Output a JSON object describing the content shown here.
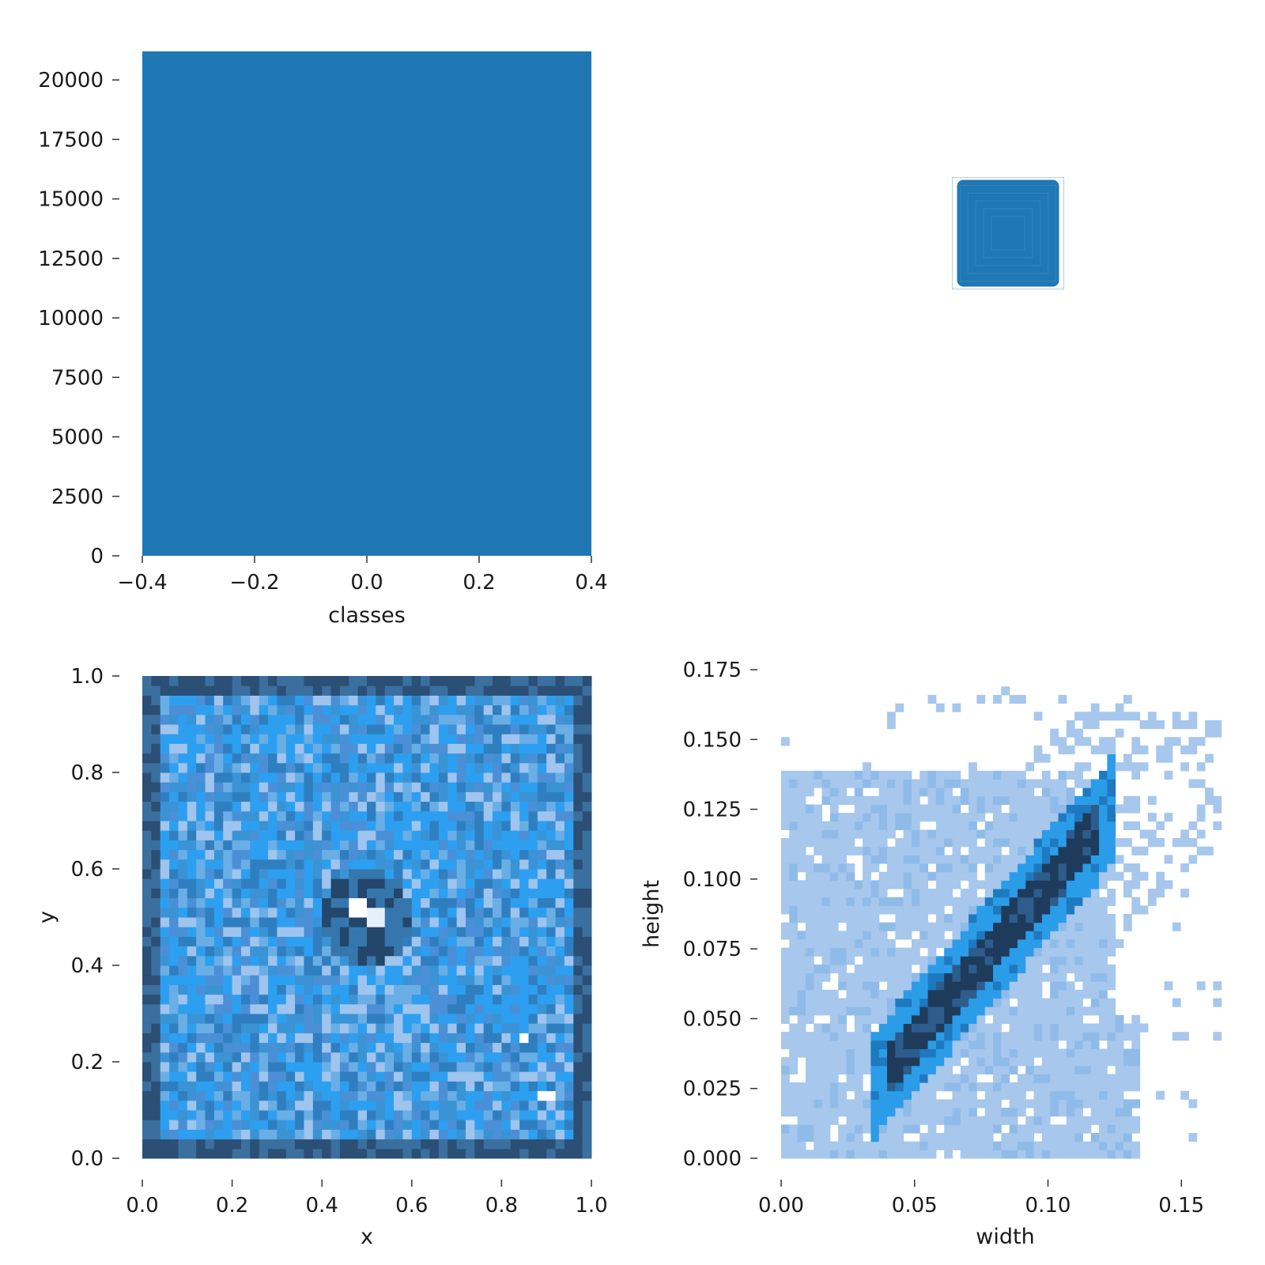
{
  "colors": {
    "bar": "#1f77b4",
    "heat_dark": "#1f3b5c",
    "heat_mid": "#2b9ce8",
    "heat_light": "#a7c7ec",
    "box": "#1f77b4"
  },
  "chart_data": [
    {
      "id": "classes-bar",
      "type": "bar",
      "categories": [
        0
      ],
      "values": [
        21200
      ],
      "bar_range": [
        -0.4,
        0.4
      ],
      "xlabel": "classes",
      "ylabel": "",
      "xlim": [
        -0.4,
        0.4
      ],
      "ylim": [
        0,
        21200
      ],
      "xticks": [
        -0.4,
        -0.2,
        0.0,
        0.2,
        0.4
      ],
      "xtick_labels": [
        "−0.4",
        "−0.2",
        "0.0",
        "0.2",
        "0.4"
      ],
      "yticks": [
        0,
        2500,
        5000,
        7500,
        10000,
        12500,
        15000,
        17500,
        20000
      ],
      "ytick_labels": [
        "0",
        "2500",
        "5000",
        "7500",
        "10000",
        "12500",
        "15000",
        "17500",
        "20000"
      ],
      "grid": false,
      "legend": "none"
    },
    {
      "id": "box-overlay",
      "type": "other",
      "description_kind": "overlaid normalized bounding boxes centered in a unit square",
      "center": [
        0.5,
        0.5
      ],
      "size": [
        0.15,
        0.15
      ],
      "xlim": [
        0,
        1
      ],
      "ylim": [
        0,
        1
      ],
      "axes": "off"
    },
    {
      "id": "xy-heatmap",
      "type": "heatmap",
      "x_bins": 50,
      "y_bins": 50,
      "xlabel": "x",
      "ylabel": "y",
      "xlim": [
        0.0,
        1.0
      ],
      "ylim": [
        0.0,
        1.0
      ],
      "xticks": [
        0.0,
        0.2,
        0.4,
        0.6,
        0.8,
        1.0
      ],
      "xtick_labels": [
        "0.0",
        "0.2",
        "0.4",
        "0.6",
        "0.8",
        "1.0"
      ],
      "yticks": [
        0.0,
        0.2,
        0.4,
        0.6,
        0.8,
        1.0
      ],
      "ytick_labels": [
        "0.0",
        "0.2",
        "0.4",
        "0.6",
        "0.8",
        "1.0"
      ],
      "hotspots": [
        {
          "x": 0.48,
          "y": 0.52,
          "value": 0.0
        },
        {
          "x": 0.52,
          "y": 0.5,
          "value": 0.05
        },
        {
          "x": 0.85,
          "y": 0.25,
          "value": 0.0
        },
        {
          "x": 0.9,
          "y": 0.13,
          "value": 0.0
        }
      ],
      "grid": false,
      "legend": "none"
    },
    {
      "id": "wh-heatmap",
      "type": "heatmap",
      "x_bins": 55,
      "y_bins": 58,
      "xlabel": "width",
      "ylabel": "height",
      "xlim": [
        0.0,
        0.168
      ],
      "ylim": [
        0.0,
        0.175
      ],
      "xticks": [
        0.0,
        0.05,
        0.1,
        0.15
      ],
      "xtick_labels": [
        "0.00",
        "0.05",
        "0.10",
        "0.15"
      ],
      "yticks": [
        0.0,
        0.025,
        0.05,
        0.075,
        0.1,
        0.125,
        0.15,
        0.175
      ],
      "ytick_labels": [
        "0.000",
        "0.025",
        "0.050",
        "0.075",
        "0.100",
        "0.125",
        "0.150",
        "0.175"
      ],
      "ridge": [
        {
          "width": 0.04,
          "height": 0.03
        },
        {
          "width": 0.055,
          "height": 0.045
        },
        {
          "width": 0.07,
          "height": 0.065
        },
        {
          "width": 0.085,
          "height": 0.083
        },
        {
          "width": 0.1,
          "height": 0.1
        },
        {
          "width": 0.115,
          "height": 0.118
        }
      ],
      "grid": false,
      "legend": "none"
    }
  ]
}
